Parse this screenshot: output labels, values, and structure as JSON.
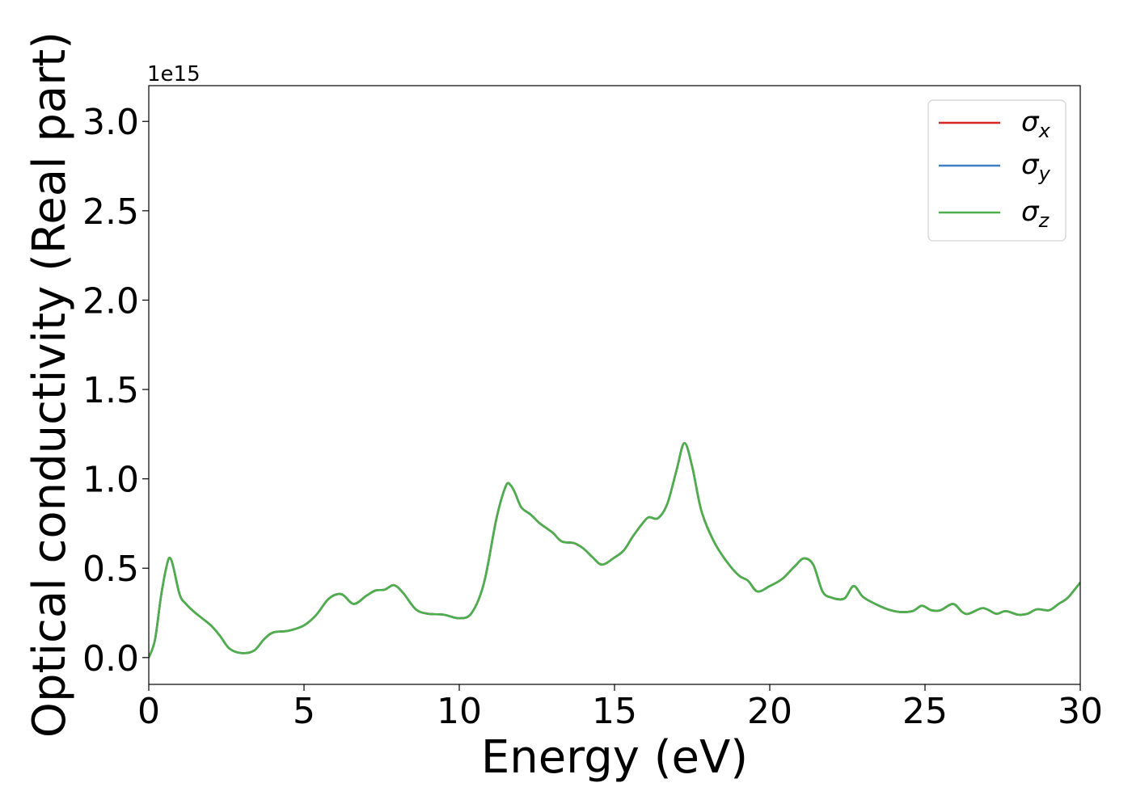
{
  "chart_data": {
    "type": "line",
    "xlabel": "Energy (eV)",
    "ylabel": "Optical conductivity (Real part)",
    "y_offset_label": "1e15",
    "xlim": [
      0,
      30
    ],
    "ylim": [
      -0.15,
      3.2
    ],
    "x_ticks": [
      0,
      5,
      10,
      15,
      20,
      25,
      30
    ],
    "y_ticks": [
      0.0,
      0.5,
      1.0,
      1.5,
      2.0,
      2.5,
      3.0
    ],
    "x_tick_labels": [
      "0",
      "5",
      "10",
      "15",
      "20",
      "25",
      "30"
    ],
    "y_tick_labels": [
      "0.0",
      "0.5",
      "1.0",
      "1.5",
      "2.0",
      "2.5",
      "3.0"
    ],
    "grid": false,
    "legend_position": "top-right",
    "legend": [
      {
        "symbol": "σ",
        "subscript": "x",
        "color": "#d62728"
      },
      {
        "symbol": "σ",
        "subscript": "y",
        "color": "#3d7fc1"
      },
      {
        "symbol": "σ",
        "subscript": "z",
        "color": "#4daf4a"
      }
    ],
    "x": [
      0,
      0.2,
      0.4,
      0.6,
      0.7,
      0.8,
      1.0,
      1.2,
      1.5,
      2.0,
      2.3,
      2.6,
      3.0,
      3.4,
      3.7,
      4.0,
      4.5,
      5.0,
      5.4,
      5.8,
      6.2,
      6.6,
      7.0,
      7.3,
      7.6,
      7.9,
      8.2,
      8.6,
      9.0,
      9.5,
      10.0,
      10.4,
      10.8,
      11.2,
      11.5,
      11.65,
      11.8,
      12.0,
      12.3,
      12.6,
      13.0,
      13.3,
      13.7,
      14.0,
      14.3,
      14.6,
      15.0,
      15.3,
      15.6,
      15.9,
      16.1,
      16.4,
      16.7,
      17.0,
      17.25,
      17.5,
      17.8,
      18.2,
      18.6,
      19.0,
      19.3,
      19.6,
      20.0,
      20.4,
      20.8,
      21.1,
      21.4,
      21.7,
      22.0,
      22.4,
      22.7,
      23.0,
      23.4,
      23.8,
      24.2,
      24.6,
      24.9,
      25.2,
      25.5,
      25.9,
      26.2,
      26.4,
      26.8,
      27.0,
      27.3,
      27.6,
      28.0,
      28.3,
      28.6,
      29.0,
      29.3,
      29.6,
      30.0
    ],
    "series": [
      {
        "color": "#d62728",
        "values": [
          0.0,
          0.1,
          0.35,
          0.53,
          0.555,
          0.5,
          0.35,
          0.3,
          0.25,
          0.18,
          0.12,
          0.05,
          0.025,
          0.04,
          0.1,
          0.14,
          0.15,
          0.18,
          0.24,
          0.33,
          0.355,
          0.3,
          0.345,
          0.375,
          0.38,
          0.405,
          0.36,
          0.27,
          0.245,
          0.24,
          0.22,
          0.25,
          0.42,
          0.78,
          0.96,
          0.965,
          0.92,
          0.84,
          0.8,
          0.75,
          0.7,
          0.65,
          0.64,
          0.61,
          0.56,
          0.52,
          0.56,
          0.6,
          0.68,
          0.75,
          0.785,
          0.78,
          0.86,
          1.05,
          1.2,
          1.07,
          0.82,
          0.65,
          0.54,
          0.46,
          0.43,
          0.37,
          0.4,
          0.44,
          0.51,
          0.555,
          0.52,
          0.37,
          0.335,
          0.33,
          0.4,
          0.34,
          0.3,
          0.27,
          0.255,
          0.26,
          0.29,
          0.265,
          0.265,
          0.3,
          0.255,
          0.245,
          0.275,
          0.27,
          0.245,
          0.26,
          0.24,
          0.245,
          0.27,
          0.265,
          0.3,
          0.335,
          0.42
        ]
      },
      {
        "color": "#3d7fc1",
        "values": [
          0.0,
          0.1,
          0.35,
          0.53,
          0.555,
          0.5,
          0.35,
          0.3,
          0.25,
          0.18,
          0.12,
          0.05,
          0.025,
          0.04,
          0.1,
          0.14,
          0.15,
          0.18,
          0.24,
          0.33,
          0.355,
          0.3,
          0.345,
          0.375,
          0.38,
          0.405,
          0.36,
          0.27,
          0.245,
          0.24,
          0.22,
          0.25,
          0.42,
          0.78,
          0.96,
          0.965,
          0.92,
          0.84,
          0.8,
          0.75,
          0.7,
          0.65,
          0.64,
          0.61,
          0.56,
          0.52,
          0.56,
          0.6,
          0.68,
          0.75,
          0.785,
          0.78,
          0.86,
          1.05,
          1.2,
          1.07,
          0.82,
          0.65,
          0.54,
          0.46,
          0.43,
          0.37,
          0.4,
          0.44,
          0.51,
          0.555,
          0.52,
          0.37,
          0.335,
          0.33,
          0.4,
          0.34,
          0.3,
          0.27,
          0.255,
          0.26,
          0.29,
          0.265,
          0.265,
          0.3,
          0.255,
          0.245,
          0.275,
          0.27,
          0.245,
          0.26,
          0.24,
          0.245,
          0.27,
          0.265,
          0.3,
          0.335,
          0.42
        ]
      },
      {
        "color": "#4daf4a",
        "values": [
          0.0,
          0.1,
          0.35,
          0.53,
          0.555,
          0.5,
          0.35,
          0.3,
          0.25,
          0.18,
          0.12,
          0.05,
          0.025,
          0.04,
          0.1,
          0.14,
          0.15,
          0.18,
          0.24,
          0.33,
          0.355,
          0.3,
          0.345,
          0.375,
          0.38,
          0.405,
          0.36,
          0.27,
          0.245,
          0.24,
          0.22,
          0.25,
          0.42,
          0.78,
          0.96,
          0.965,
          0.92,
          0.84,
          0.8,
          0.75,
          0.7,
          0.65,
          0.64,
          0.61,
          0.56,
          0.52,
          0.56,
          0.6,
          0.68,
          0.75,
          0.785,
          0.78,
          0.86,
          1.05,
          1.2,
          1.07,
          0.82,
          0.65,
          0.54,
          0.46,
          0.43,
          0.37,
          0.4,
          0.44,
          0.51,
          0.555,
          0.52,
          0.37,
          0.335,
          0.33,
          0.4,
          0.34,
          0.3,
          0.27,
          0.255,
          0.26,
          0.29,
          0.265,
          0.265,
          0.3,
          0.255,
          0.245,
          0.275,
          0.27,
          0.245,
          0.26,
          0.24,
          0.245,
          0.27,
          0.265,
          0.3,
          0.335,
          0.42
        ]
      }
    ]
  }
}
